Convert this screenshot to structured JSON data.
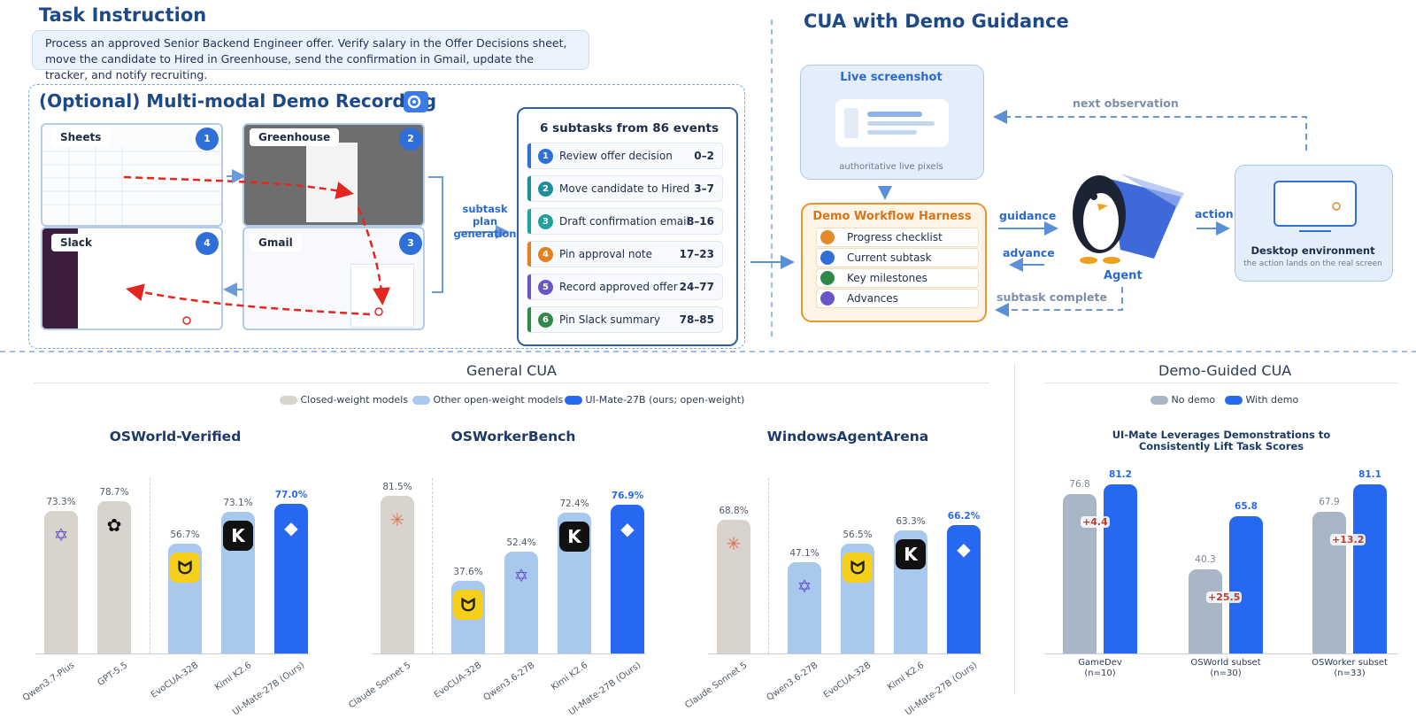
{
  "task": {
    "title": "Task Instruction",
    "text": "Process an approved Senior Backend Engineer offer. Verify salary in the Offer Decisions sheet, move the candidate to Hired in Greenhouse, send the confirmation in Gmail, update the tracker, and notify recruiting."
  },
  "demo": {
    "title": "(Optional) Multi-modal Demo Recording",
    "apps": [
      {
        "name": "Sheets",
        "num": "1"
      },
      {
        "name": "Greenhouse",
        "num": "2"
      },
      {
        "name": "Gmail",
        "num": "3"
      },
      {
        "name": "Slack",
        "num": "4"
      }
    ],
    "arrow_label": "subtask plan generation",
    "plan_title": "6 subtasks from 86 events",
    "subtasks": [
      {
        "num": "1",
        "label": "Review offer decision",
        "range": "0–2",
        "color": "#2e6fd8"
      },
      {
        "num": "2",
        "label": "Move candidate to Hired",
        "range": "3–7",
        "color": "#1e8f9a"
      },
      {
        "num": "3",
        "label": "Draft confirmation email",
        "range": "8–16",
        "color": "#1ea29a"
      },
      {
        "num": "4",
        "label": "Pin approval note",
        "range": "17–23",
        "color": "#e3801f"
      },
      {
        "num": "5",
        "label": "Record approved offer",
        "range": "24–77",
        "color": "#6a55c8"
      },
      {
        "num": "6",
        "label": "Pin Slack summary",
        "range": "78–85",
        "color": "#2f8a4a"
      }
    ]
  },
  "cua": {
    "title": "CUA with Demo Guidance",
    "live_title": "Live screenshot",
    "live_caption": "authoritative live pixels",
    "next_obs": "next observation",
    "harness_title": "Demo Workflow Harness",
    "harness_items": [
      "Progress checklist",
      "Current subtask",
      "Key milestones",
      "Advances"
    ],
    "guidance": "guidance",
    "advance": "advance",
    "subtask_complete": "subtask complete",
    "agent": "Agent",
    "action": "action",
    "desktop_title": "Desktop environment",
    "desktop_caption": "the action lands on the real screen"
  },
  "general": {
    "title": "General CUA",
    "legend": [
      "Closed-weight models",
      "Other open-weight models",
      "UI-Mate-27B (ours; open-weight)"
    ]
  },
  "demo_guided": {
    "title": "Demo-Guided CUA",
    "legend": [
      "No demo",
      "With demo"
    ],
    "chart_title": "UI-Mate Leverages Demonstrations to Consistently Lift Task Scores"
  },
  "chart_data": [
    {
      "type": "bar",
      "title": "OSWorld-Verified",
      "categories": [
        "Qwen3.7-Plus",
        "GPT-5.5",
        "EvoCUA-32B",
        "Kimi K2.6",
        "UI-Mate-27B (Ours)"
      ],
      "values": [
        73.3,
        78.7,
        56.7,
        73.1,
        77.0
      ],
      "labels": [
        "73.3%",
        "78.7%",
        "56.7%",
        "73.1%",
        "77.0%"
      ],
      "groups": [
        "closed",
        "closed",
        "open",
        "open",
        "ours"
      ]
    },
    {
      "type": "bar",
      "title": "OSWorkerBench",
      "categories": [
        "Claude Sonnet 5",
        "EvoCUA-32B",
        "Qwen3.6-27B",
        "Kimi K2.6",
        "UI-Mate-27B (Ours)"
      ],
      "values": [
        81.5,
        37.6,
        52.4,
        72.4,
        76.9
      ],
      "labels": [
        "81.5%",
        "37.6%",
        "52.4%",
        "72.4%",
        "76.9%"
      ],
      "groups": [
        "closed",
        "open",
        "open",
        "open",
        "ours"
      ]
    },
    {
      "type": "bar",
      "title": "WindowsAgentArena",
      "categories": [
        "Claude Sonnet 5",
        "Qwen3.6-27B",
        "EvoCUA-32B",
        "Kimi K2.6",
        "UI-Mate-27B (Ours)"
      ],
      "values": [
        68.8,
        47.1,
        56.5,
        63.3,
        66.2
      ],
      "labels": [
        "68.8%",
        "47.1%",
        "56.5%",
        "63.3%",
        "66.2%"
      ],
      "groups": [
        "closed",
        "open",
        "open",
        "open",
        "ours"
      ]
    },
    {
      "type": "bar",
      "title": "UI-Mate Leverages Demonstrations to Consistently Lift Task Scores",
      "categories": [
        "GameDev (n=10)",
        "OSWorld subset (n=30)",
        "OSWorker subset (n=33)"
      ],
      "series": [
        {
          "name": "No demo",
          "values": [
            76.8,
            40.3,
            67.9
          ]
        },
        {
          "name": "With demo",
          "values": [
            81.2,
            65.8,
            81.1
          ]
        }
      ],
      "deltas": [
        "+4.4",
        "+25.5",
        "+13.2"
      ]
    }
  ],
  "colors": {
    "closed": "#d8d3cc",
    "open": "#a9c8ee",
    "ours": "#2668f0",
    "nodemo": "#a9b6c6",
    "withdemo": "#2668f0"
  }
}
